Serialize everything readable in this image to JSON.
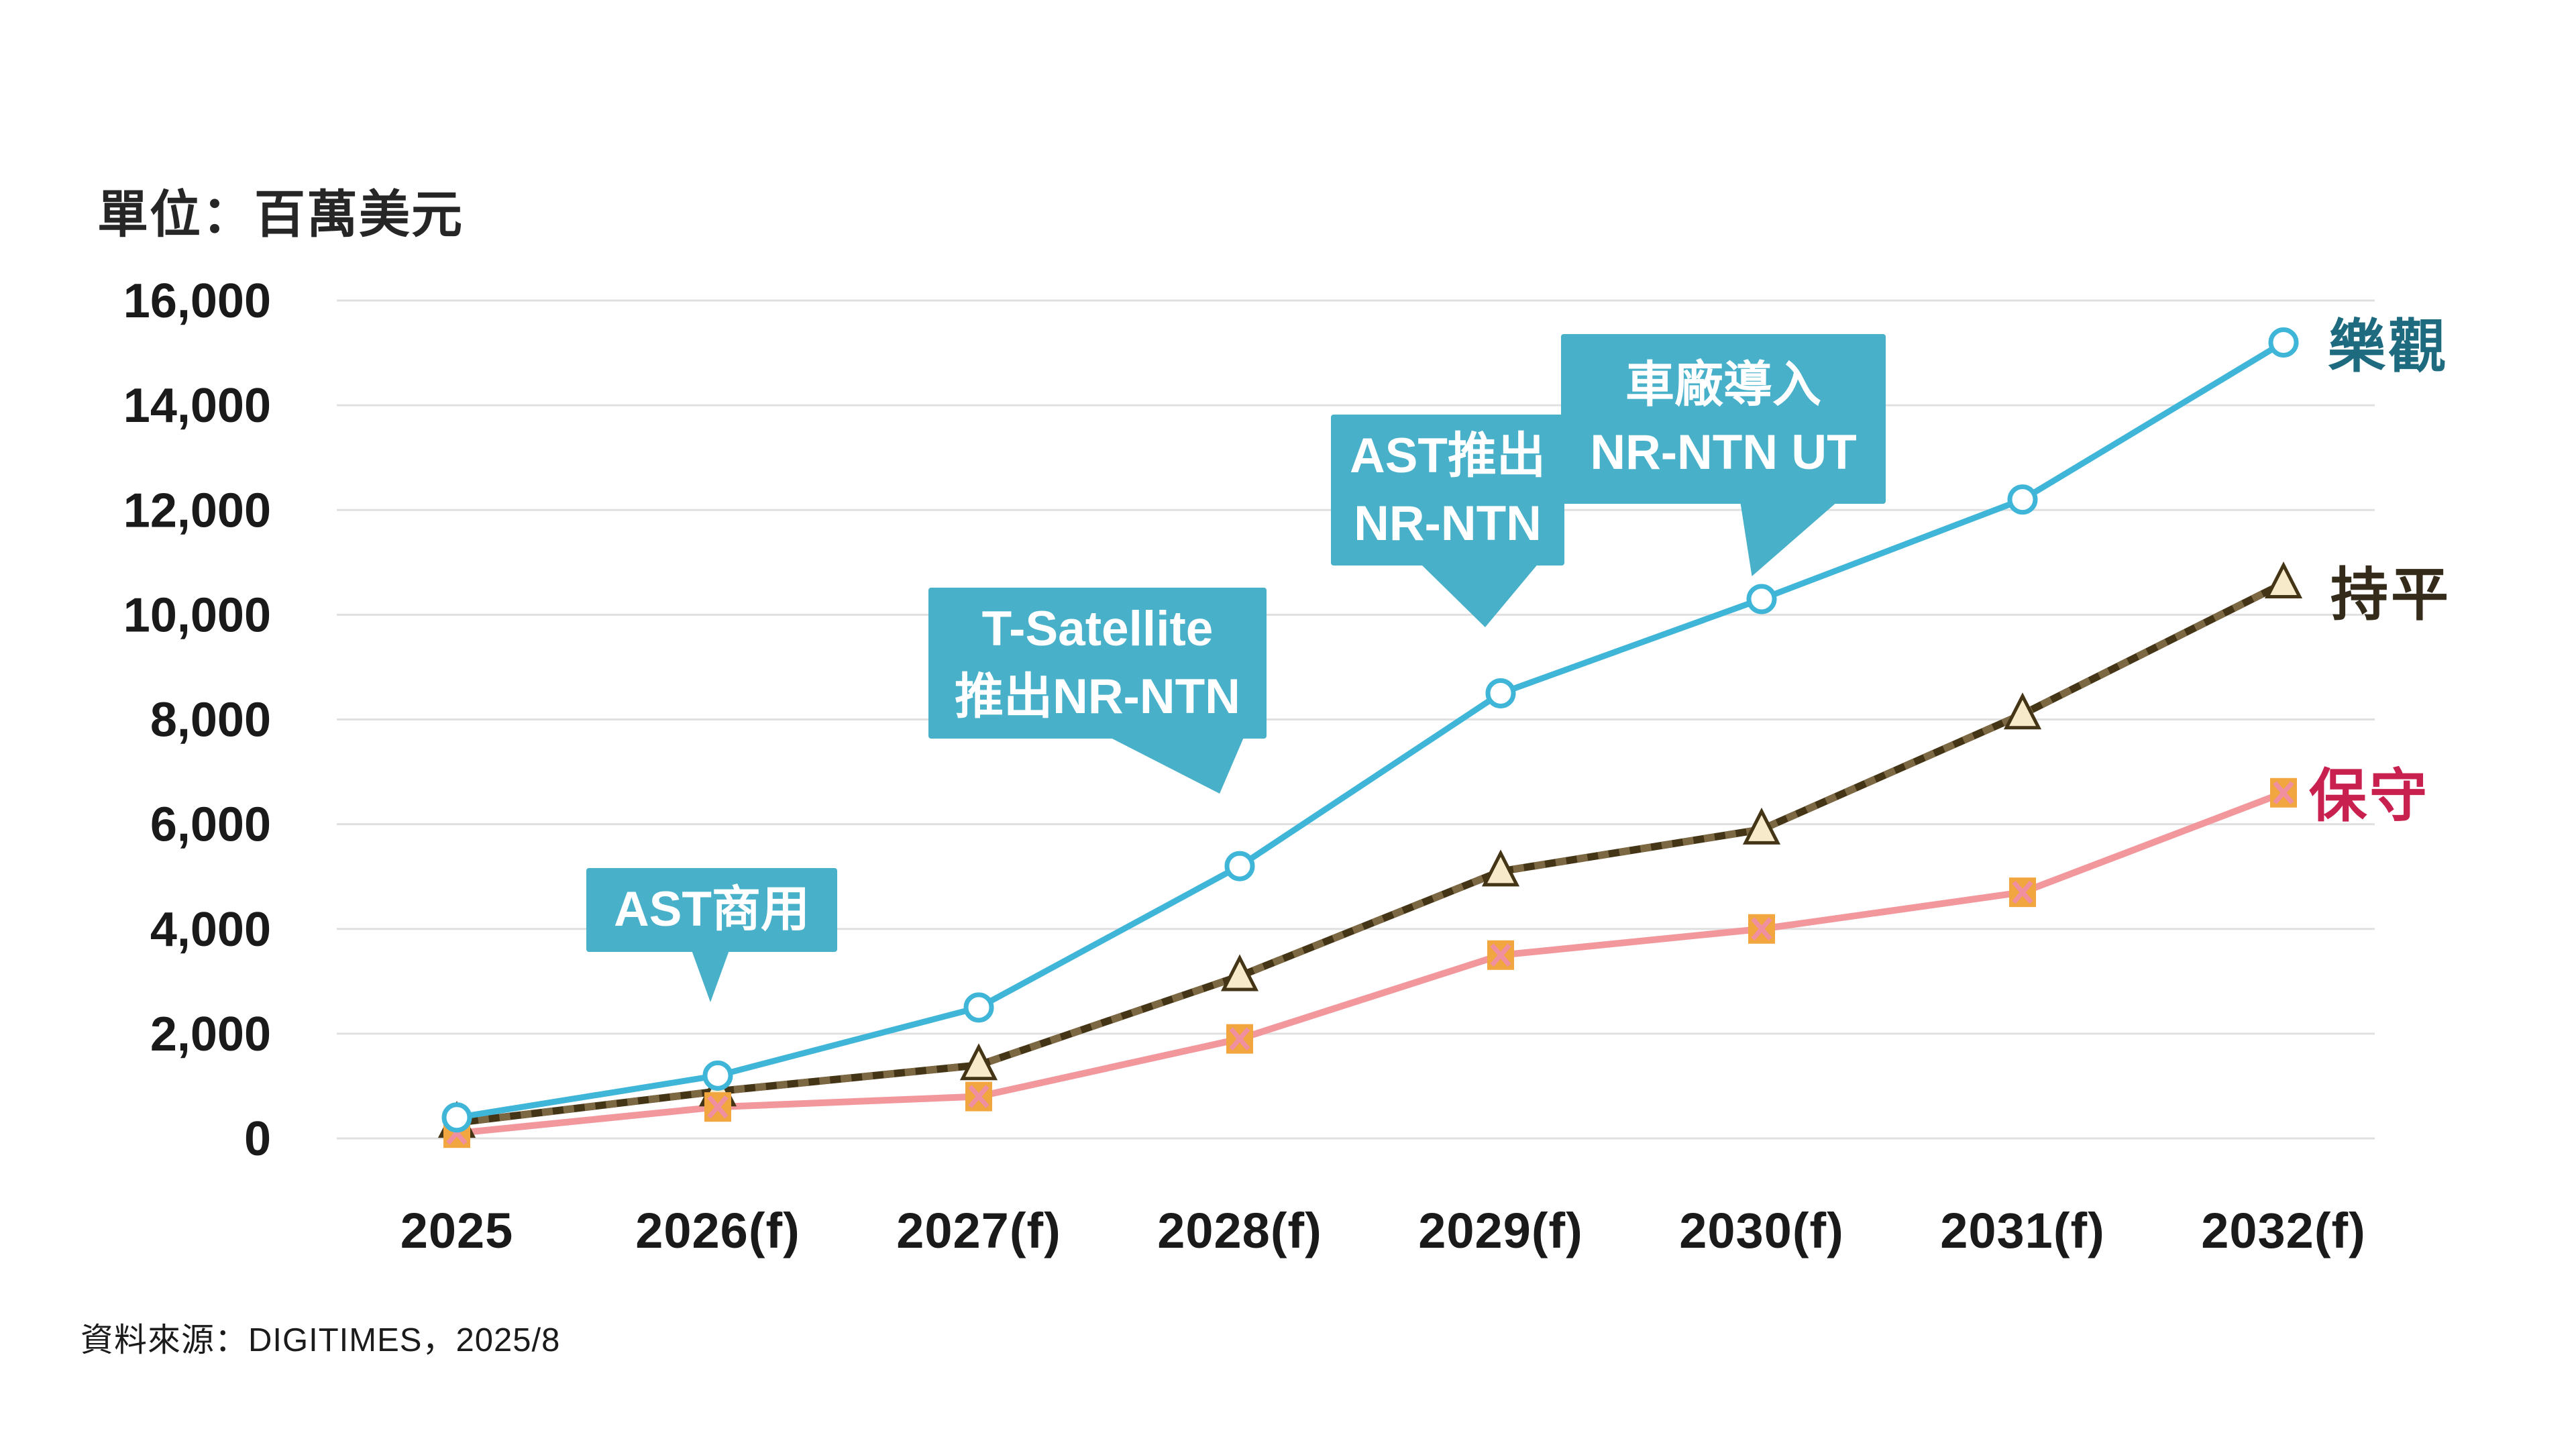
{
  "unit_label": "單位：百萬美元",
  "source": "資料來源：DIGITIMES，2025/8",
  "colors": {
    "background": "#ffffff",
    "gridline": "#e0e0e0",
    "axis_text": "#1a1a1a",
    "callout": "#48b0c9",
    "callout_text": "#ffffff",
    "optimistic_line": "#3fb5d8",
    "optimistic_marker_fill": "#ffffff",
    "flat_line": "#453517",
    "flat_line_highlight": "#7d6844",
    "flat_marker_fill": "#f7eaca",
    "conservative_line": "#f2989d",
    "conservative_marker_fill": "#f2a63f",
    "conservative_marker_x": "#ef8f9f",
    "legend_optimistic": "#1e6b7f",
    "legend_flat": "#342b1b",
    "legend_conservative": "#c8204f"
  },
  "chart_data": {
    "type": "line",
    "title": "",
    "xlabel": "",
    "ylabel": "單位：百萬美元",
    "ylim": [
      0,
      16000
    ],
    "ytick_step": 2000,
    "ytick_labels": [
      "0",
      "2,000",
      "4,000",
      "6,000",
      "8,000",
      "10,000",
      "12,000",
      "14,000",
      "16,000"
    ],
    "grid": true,
    "legend_position": "right-of-last-point",
    "categories": [
      "2025",
      "2026(f)",
      "2027(f)",
      "2028(f)",
      "2029(f)",
      "2030(f)",
      "2031(f)",
      "2032(f)"
    ],
    "series": [
      {
        "name": "樂觀",
        "marker": "circle",
        "values": [
          400,
          1200,
          2500,
          5200,
          8500,
          10300,
          12200,
          15200
        ]
      },
      {
        "name": "持平",
        "marker": "triangle",
        "values": [
          300,
          900,
          1400,
          3100,
          5100,
          5900,
          8100,
          10600
        ]
      },
      {
        "name": "保守",
        "marker": "square",
        "values": [
          100,
          600,
          800,
          1900,
          3500,
          4000,
          4700,
          6600
        ]
      }
    ],
    "annotations": [
      {
        "lines": [
          "AST商用"
        ],
        "points_to": "2026(f)"
      },
      {
        "lines": [
          "T-Satellite",
          "推出NR-NTN"
        ],
        "points_to": "2028(f)"
      },
      {
        "lines": [
          "AST推出",
          "NR-NTN"
        ],
        "points_to": "2029(f)"
      },
      {
        "lines": [
          "車廠導入",
          "NR-NTN UT"
        ],
        "points_to": "2030(f)"
      }
    ]
  }
}
